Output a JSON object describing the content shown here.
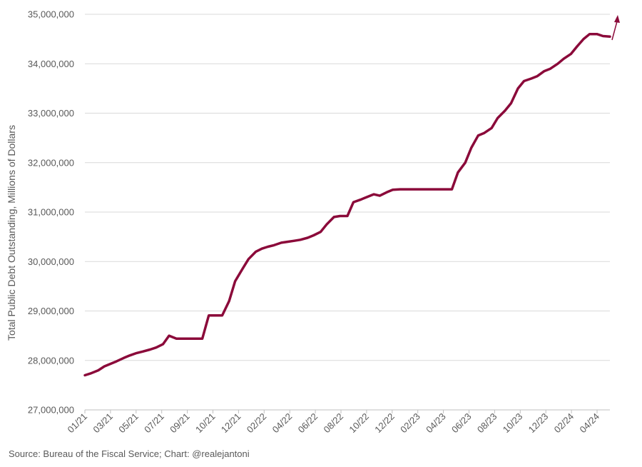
{
  "chart_data": {
    "type": "line",
    "ylabel": "Total Public Debt Outstanding, Millions of Dollars",
    "ylim": [
      27000000,
      35000000
    ],
    "yticks": [
      27000000,
      28000000,
      29000000,
      30000000,
      31000000,
      32000000,
      33000000,
      34000000,
      35000000
    ],
    "ytick_labels": [
      "27,000,000",
      "28,000,000",
      "29,000,000",
      "30,000,000",
      "31,000,000",
      "32,000,000",
      "33,000,000",
      "34,000,000",
      "35,000,000"
    ],
    "xlim": [
      "2021-01",
      "2024-05"
    ],
    "xtick_labels": [
      "01/21",
      "03/21",
      "05/21",
      "07/21",
      "09/21",
      "10/21",
      "12/21",
      "02/22",
      "04/22",
      "06/22",
      "08/22",
      "10/22",
      "12/22",
      "02/23",
      "04/23",
      "06/23",
      "08/23",
      "10/23",
      "12/23",
      "02/24",
      "04/24"
    ],
    "grid": "horizontal",
    "series": [
      {
        "color": "#8B0A3A",
        "x": [
          "2021-01-01",
          "2021-01-15",
          "2021-02-01",
          "2021-02-15",
          "2021-03-01",
          "2021-03-15",
          "2021-04-01",
          "2021-04-15",
          "2021-05-01",
          "2021-05-15",
          "2021-06-01",
          "2021-06-15",
          "2021-07-01",
          "2021-07-15",
          "2021-08-01",
          "2021-08-15",
          "2021-09-01",
          "2021-09-15",
          "2021-09-30",
          "2021-10-15",
          "2021-11-01",
          "2021-11-15",
          "2021-12-01",
          "2021-12-15",
          "2022-01-01",
          "2022-01-15",
          "2022-02-01",
          "2022-02-15",
          "2022-03-01",
          "2022-03-15",
          "2022-04-01",
          "2022-04-15",
          "2022-05-01",
          "2022-05-15",
          "2022-06-01",
          "2022-06-15",
          "2022-07-01",
          "2022-07-15",
          "2022-08-01",
          "2022-08-15",
          "2022-09-01",
          "2022-09-15",
          "2022-10-01",
          "2022-10-15",
          "2022-11-01",
          "2022-11-15",
          "2022-12-01",
          "2022-12-15",
          "2023-01-01",
          "2023-01-15",
          "2023-02-01",
          "2023-02-15",
          "2023-03-01",
          "2023-03-15",
          "2023-04-01",
          "2023-04-15",
          "2023-05-01",
          "2023-05-15",
          "2023-06-01",
          "2023-06-15",
          "2023-07-01",
          "2023-07-15",
          "2023-08-01",
          "2023-08-15",
          "2023-09-01",
          "2023-09-15",
          "2023-10-01",
          "2023-10-15",
          "2023-11-01",
          "2023-11-15",
          "2023-12-01",
          "2023-12-15",
          "2024-01-01",
          "2024-01-15",
          "2024-02-01",
          "2024-02-15",
          "2024-03-01",
          "2024-03-15",
          "2024-04-01",
          "2024-04-15",
          "2024-05-01"
        ],
        "y": [
          27700000,
          27740000,
          27800000,
          27880000,
          27930000,
          27980000,
          28050000,
          28100000,
          28150000,
          28180000,
          28220000,
          28260000,
          28330000,
          28500000,
          28440000,
          28440000,
          28440000,
          28440000,
          28440000,
          28910000,
          28910000,
          28910000,
          29200000,
          29600000,
          29850000,
          30050000,
          30200000,
          30260000,
          30300000,
          30330000,
          30380000,
          30400000,
          30420000,
          30440000,
          30480000,
          30530000,
          30600000,
          30750000,
          30900000,
          30920000,
          30920000,
          31200000,
          31250000,
          31300000,
          31360000,
          31330000,
          31400000,
          31450000,
          31460000,
          31460000,
          31460000,
          31460000,
          31460000,
          31460000,
          31460000,
          31460000,
          31460000,
          31800000,
          32000000,
          32300000,
          32550000,
          32600000,
          32700000,
          32900000,
          33050000,
          33200000,
          33500000,
          33650000,
          33700000,
          33750000,
          33850000,
          33900000,
          34000000,
          34100000,
          34200000,
          34350000,
          34500000,
          34600000,
          34600000,
          34560000,
          34550000
        ]
      }
    ]
  },
  "source_text": "Source: Bureau of the Fiscal Service; Chart: @realejantoni"
}
